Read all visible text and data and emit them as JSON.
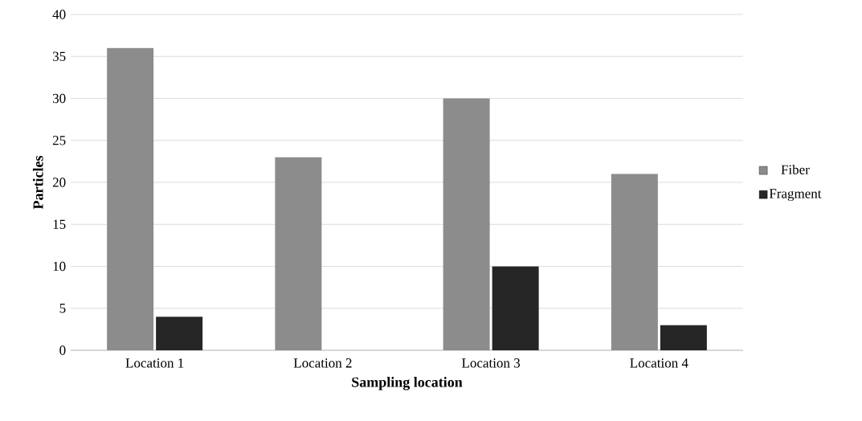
{
  "chart_data": {
    "type": "bar",
    "xlabel": "Sampling location",
    "ylabel": "Particles",
    "categories": [
      "Location 1",
      "Location 2",
      "Location 3",
      "Location 4"
    ],
    "series": [
      {
        "name": "Fiber",
        "color": "#8c8c8c",
        "values": [
          36,
          23,
          30,
          21
        ]
      },
      {
        "name": "Fragment",
        "color": "#262626",
        "values": [
          4,
          0,
          10,
          3
        ]
      }
    ],
    "ylim": [
      0,
      40
    ],
    "yticks": [
      0,
      5,
      10,
      15,
      20,
      25,
      30,
      35,
      40
    ],
    "grid": "y",
    "legend": "right"
  }
}
